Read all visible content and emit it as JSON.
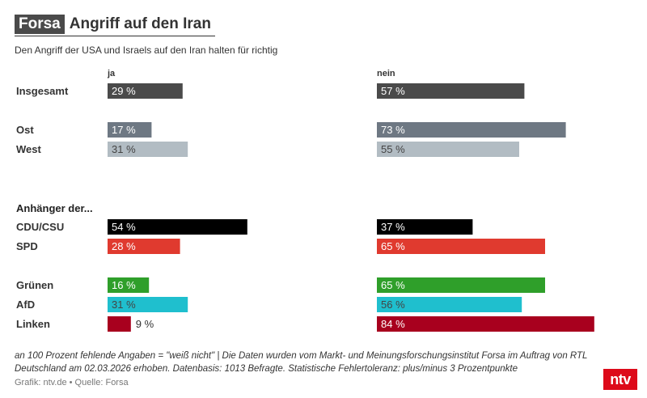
{
  "header": {
    "brand": "Forsa",
    "title": "Angriff auf den Iran",
    "subtitle": "Den Angriff der USA und Israels auf den Iran halten für richtig"
  },
  "chart_data": {
    "type": "bar",
    "orientation": "horizontal",
    "title": "Angriff auf den Iran",
    "subtitle": "Den Angriff der USA und Israels auf den Iran halten für richtig",
    "columns": [
      "ja",
      "nein"
    ],
    "xlim": [
      0,
      100
    ],
    "unit": "%",
    "section_labels": [
      "Anhänger der..."
    ],
    "rows": [
      {
        "label": "Insgesamt",
        "ja": 29,
        "nein": 57,
        "ja_label": "29 %",
        "nein_label": "57 %",
        "color": "#4a4a4a",
        "text": "#ffffff"
      },
      {
        "label": "Ost",
        "ja": 17,
        "nein": 73,
        "ja_label": "17 %",
        "nein_label": "73 %",
        "color": "#6e7883",
        "text": "#ffffff"
      },
      {
        "label": "West",
        "ja": 31,
        "nein": 55,
        "ja_label": "31 %",
        "nein_label": "55 %",
        "color": "#b2bcc3",
        "text": "#444444"
      },
      {
        "label": "CDU/CSU",
        "ja": 54,
        "nein": 37,
        "ja_label": "54 %",
        "nein_label": "37 %",
        "color": "#000000",
        "text": "#ffffff"
      },
      {
        "label": "SPD",
        "ja": 28,
        "nein": 65,
        "ja_label": "28 %",
        "nein_label": "65 %",
        "color": "#e03a2f",
        "text": "#ffffff"
      },
      {
        "label": "Grünen",
        "ja": 16,
        "nein": 65,
        "ja_label": "16 %",
        "nein_label": "65 %",
        "color": "#2f9f2a",
        "text": "#ffffff"
      },
      {
        "label": "AfD",
        "ja": 31,
        "nein": 56,
        "ja_label": "31 %",
        "nein_label": "56 %",
        "color": "#1fbfce",
        "text": "#444444"
      },
      {
        "label": "Linken",
        "ja": 9,
        "nein": 84,
        "ja_label": "9 %",
        "nein_label": "84 %",
        "color": "#a8001e",
        "text": "#ffffff"
      }
    ]
  },
  "footer": {
    "note": "an 100 Prozent fehlende Angaben = \"weiß nicht\" | Die Daten wurden vom Markt- und Meinungsforschungsinstitut Forsa im Auftrag von RTL Deutschland am 02.03.2026 erhoben. Datenbasis: 1013 Befragte. Statistische Fehlertoleranz: plus/minus 3 Prozentpunkte",
    "credit": "Grafik: ntv.de • Quelle: Forsa",
    "logo": "ntv"
  }
}
